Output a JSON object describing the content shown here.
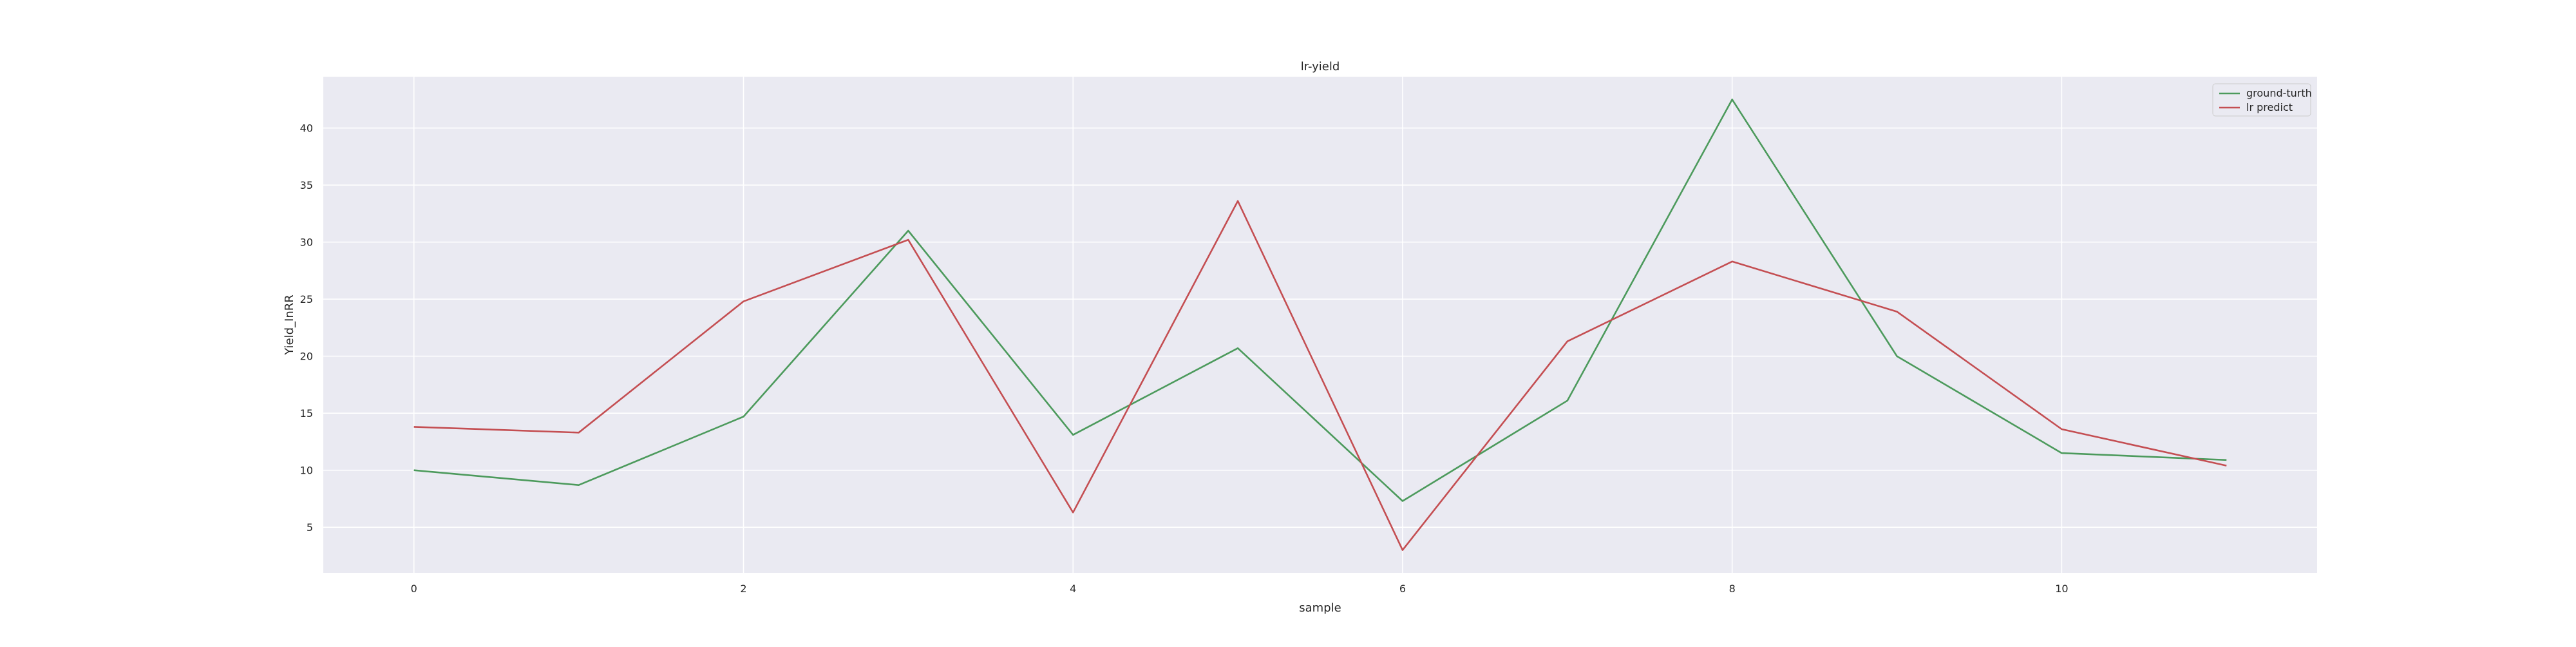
{
  "chart_data": {
    "type": "line",
    "title": "lr-yield",
    "xlabel": "sample",
    "ylabel": "Yield_InRR",
    "x": [
      0,
      1,
      2,
      3,
      4,
      5,
      6,
      7,
      8,
      9,
      10,
      11
    ],
    "xlim": [
      -0.55,
      11.55
    ],
    "ylim": [
      1.0,
      44.5
    ],
    "xticks": [
      0,
      2,
      4,
      6,
      8,
      10
    ],
    "yticks": [
      5,
      10,
      15,
      20,
      25,
      30,
      35,
      40
    ],
    "grid": true,
    "legend_position": "top-right",
    "background_color": "#eaeaf2",
    "grid_color": "#ffffff",
    "series": [
      {
        "name": "ground-turth",
        "color": "#4c9a5c",
        "values": [
          10.0,
          8.7,
          14.7,
          31.0,
          13.1,
          20.7,
          7.3,
          16.1,
          42.5,
          20.0,
          11.5,
          10.9
        ]
      },
      {
        "name": "lr predict",
        "color": "#c44e52",
        "values": [
          13.8,
          13.3,
          24.8,
          30.2,
          6.3,
          33.6,
          3.0,
          21.3,
          28.3,
          23.9,
          13.6,
          10.4
        ]
      }
    ]
  }
}
